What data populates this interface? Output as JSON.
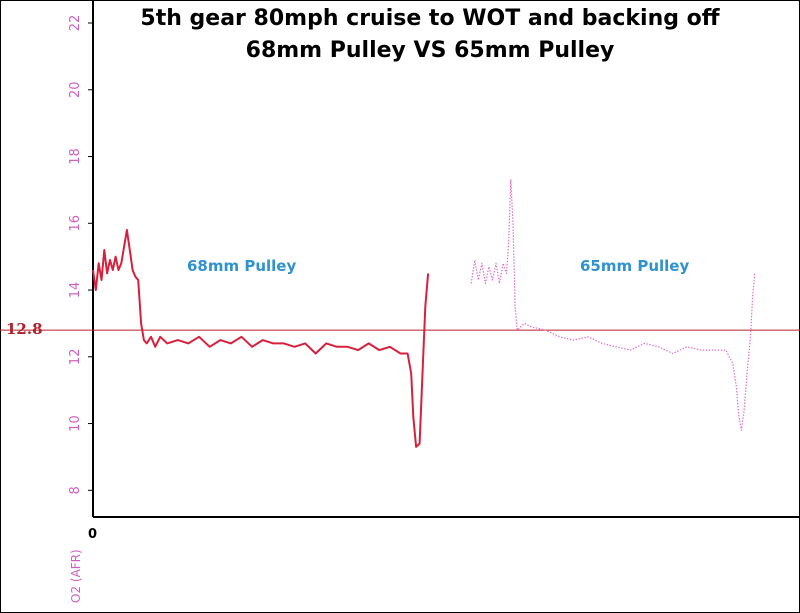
{
  "chart_data": {
    "type": "line",
    "title": "5th gear 80mph cruise to WOT and backing off",
    "subtitle": "68mm Pulley VS 65mm Pulley",
    "ylabel": "O2 (AFR)",
    "x_origin_label": "0",
    "ylim": [
      7.5,
      22.3
    ],
    "yticks": [
      8,
      10,
      12,
      14,
      16,
      18,
      20,
      22
    ],
    "xlim": [
      0,
      100
    ],
    "grid": false,
    "reference_line": {
      "value": 12.8,
      "label": "12.8",
      "color": "#b0202a"
    },
    "annotations": [
      {
        "text": "68mm Pulley",
        "color": "#2f93d0"
      },
      {
        "text": "65mm Pulley",
        "color": "#2f93d0"
      }
    ],
    "series": [
      {
        "style": "solid",
        "color": "#d8203c",
        "x": [
          0,
          0.4,
          0.8,
          1.2,
          1.6,
          2.0,
          2.4,
          2.8,
          3.2,
          3.6,
          4.0,
          4.4,
          4.8,
          5.2,
          5.6,
          6.0,
          6.4,
          6.8,
          7.2,
          7.6,
          8.2,
          8.8,
          9.5,
          10.5,
          12,
          13.5,
          15,
          16.5,
          18,
          19.5,
          21,
          22.5,
          24,
          25.5,
          27,
          28.5,
          30,
          31.5,
          33,
          34.5,
          36,
          37.5,
          39,
          40.5,
          42,
          43.5,
          44.5,
          45.0,
          45.3,
          45.7,
          46.2,
          46.6,
          47.0,
          47.4
        ],
        "y": [
          14.6,
          14.0,
          14.8,
          14.3,
          15.2,
          14.5,
          14.9,
          14.6,
          15.0,
          14.6,
          14.8,
          15.3,
          15.8,
          15.2,
          14.6,
          14.4,
          14.3,
          13.0,
          12.5,
          12.4,
          12.6,
          12.3,
          12.6,
          12.4,
          12.5,
          12.4,
          12.6,
          12.3,
          12.5,
          12.4,
          12.6,
          12.3,
          12.5,
          12.4,
          12.4,
          12.3,
          12.4,
          12.1,
          12.4,
          12.3,
          12.3,
          12.2,
          12.4,
          12.2,
          12.3,
          12.1,
          12.1,
          11.5,
          10.2,
          9.3,
          9.4,
          11.5,
          13.5,
          14.5
        ]
      },
      {
        "style": "dotted",
        "color": "#e070cc",
        "x": [
          53.5,
          54,
          54.5,
          55,
          55.5,
          56,
          56.5,
          57,
          57.5,
          58,
          58.5,
          58.8,
          59.1,
          59.4,
          59.7,
          60,
          61,
          62,
          64,
          66,
          68,
          70,
          72,
          74,
          76,
          78,
          80,
          82,
          84,
          86,
          88,
          89.5,
          90.5,
          91,
          91.3,
          91.7,
          92.1,
          92.5,
          93,
          93.3,
          93.6
        ],
        "y": [
          14.2,
          14.9,
          14.3,
          14.8,
          14.2,
          14.7,
          14.3,
          14.8,
          14.2,
          14.8,
          14.5,
          15.5,
          17.3,
          16.0,
          13.5,
          12.8,
          13.0,
          12.9,
          12.8,
          12.6,
          12.5,
          12.6,
          12.4,
          12.3,
          12.2,
          12.4,
          12.3,
          12.1,
          12.3,
          12.2,
          12.2,
          12.2,
          11.8,
          11.1,
          10.3,
          9.8,
          10.4,
          11.5,
          12.6,
          13.8,
          14.5
        ]
      }
    ]
  }
}
